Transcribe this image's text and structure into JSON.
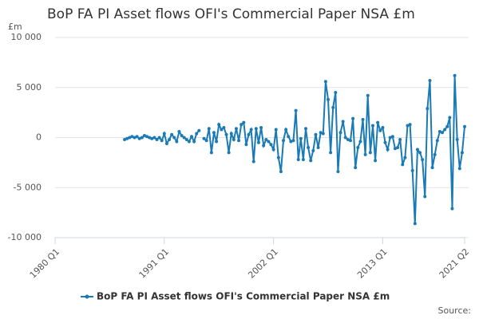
{
  "chart_data": {
    "type": "line",
    "title": "BoP FA PI Asset flows OFI's Commercial Paper NSA £m",
    "y_unit": "£m",
    "source": "Source:",
    "categories": [
      "1980 Q1",
      "1980 Q2",
      "1980 Q3",
      "1980 Q4",
      "1981 Q1",
      "1981 Q2",
      "1981 Q3",
      "1981 Q4",
      "1982 Q1",
      "1982 Q2",
      "1982 Q3",
      "1982 Q4",
      "1983 Q1",
      "1983 Q2",
      "1983 Q3",
      "1983 Q4",
      "1984 Q1",
      "1984 Q2",
      "1984 Q3",
      "1984 Q4",
      "1985 Q1",
      "1985 Q2",
      "1985 Q3",
      "1985 Q4",
      "1986 Q1",
      "1986 Q2",
      "1986 Q3",
      "1986 Q4",
      "1987 Q1",
      "1987 Q2",
      "1987 Q3",
      "1987 Q4",
      "1988 Q1",
      "1988 Q2",
      "1988 Q3",
      "1988 Q4",
      "1989 Q1",
      "1989 Q2",
      "1989 Q3",
      "1989 Q4",
      "1990 Q1",
      "1990 Q2",
      "1990 Q3",
      "1990 Q4",
      "1991 Q1",
      "1991 Q2",
      "1991 Q3",
      "1991 Q4",
      "1992 Q1",
      "1992 Q2",
      "1992 Q3",
      "1992 Q4",
      "1993 Q1",
      "1993 Q2",
      "1993 Q3",
      "1993 Q4",
      "1994 Q1",
      "1994 Q2",
      "1994 Q3",
      "1994 Q4",
      "1995 Q1",
      "1995 Q2",
      "1995 Q3",
      "1995 Q4",
      "1996 Q1",
      "1996 Q2",
      "1996 Q3",
      "1996 Q4",
      "1997 Q1",
      "1997 Q2",
      "1997 Q3",
      "1997 Q4",
      "1998 Q1",
      "1998 Q2",
      "1998 Q3",
      "1998 Q4",
      "1999 Q1",
      "1999 Q2",
      "1999 Q3",
      "1999 Q4",
      "2000 Q1",
      "2000 Q2",
      "2000 Q3",
      "2000 Q4",
      "2001 Q1",
      "2001 Q2",
      "2001 Q3",
      "2001 Q4",
      "2002 Q1",
      "2002 Q2",
      "2002 Q3",
      "2002 Q4",
      "2003 Q1",
      "2003 Q2",
      "2003 Q3",
      "2003 Q4",
      "2004 Q1",
      "2004 Q2",
      "2004 Q3",
      "2004 Q4",
      "2005 Q1",
      "2005 Q2",
      "2005 Q3",
      "2005 Q4",
      "2006 Q1",
      "2006 Q2",
      "2006 Q3",
      "2006 Q4",
      "2007 Q1",
      "2007 Q2",
      "2007 Q3",
      "2007 Q4",
      "2008 Q1",
      "2008 Q2",
      "2008 Q3",
      "2008 Q4",
      "2009 Q1",
      "2009 Q2",
      "2009 Q3",
      "2009 Q4",
      "2010 Q1",
      "2010 Q2",
      "2010 Q3",
      "2010 Q4",
      "2011 Q1",
      "2011 Q2",
      "2011 Q3",
      "2011 Q4",
      "2012 Q1",
      "2012 Q2",
      "2012 Q3",
      "2012 Q4",
      "2013 Q1",
      "2013 Q2",
      "2013 Q3",
      "2013 Q4",
      "2014 Q1",
      "2014 Q2",
      "2014 Q3",
      "2014 Q4",
      "2015 Q1",
      "2015 Q2",
      "2015 Q3",
      "2015 Q4",
      "2016 Q1",
      "2016 Q2",
      "2016 Q3",
      "2016 Q4",
      "2017 Q1",
      "2017 Q2",
      "2017 Q3",
      "2017 Q4",
      "2018 Q1",
      "2018 Q2",
      "2018 Q3",
      "2018 Q4",
      "2019 Q1",
      "2019 Q2",
      "2019 Q3",
      "2019 Q4",
      "2020 Q1",
      "2020 Q2",
      "2020 Q3",
      "2020 Q4",
      "2021 Q1",
      "2021 Q2"
    ],
    "xticks": [
      "1980 Q1",
      "1991 Q1",
      "2002 Q1",
      "2013 Q1",
      "2021 Q2"
    ],
    "series": [
      {
        "name": "BoP FA PI Asset flows OFI's Commercial Paper NSA £m",
        "color": "#1a7ab5",
        "values": [
          null,
          null,
          null,
          null,
          null,
          null,
          null,
          null,
          null,
          null,
          null,
          null,
          null,
          null,
          null,
          null,
          null,
          null,
          null,
          null,
          null,
          null,
          null,
          null,
          null,
          null,
          null,
          null,
          -200,
          -100,
          0,
          100,
          0,
          100,
          -100,
          0,
          200,
          100,
          0,
          -100,
          0,
          -200,
          0,
          -300,
          400,
          -600,
          -200,
          300,
          0,
          -400,
          600,
          200,
          0,
          -200,
          -400,
          100,
          -400,
          400,
          700,
          null,
          -100,
          -300,
          900,
          -1500,
          500,
          -400,
          1300,
          800,
          1000,
          300,
          -1500,
          400,
          -200,
          900,
          -300,
          1300,
          1500,
          -700,
          300,
          800,
          -2400,
          900,
          -500,
          1000,
          -800,
          -200,
          -400,
          -700,
          -1200,
          800,
          -2000,
          -3400,
          -300,
          800,
          100,
          -400,
          -300,
          2700,
          -2200,
          -100,
          -2200,
          900,
          -1000,
          -2300,
          -1300,
          300,
          -1000,
          500,
          400,
          5600,
          3800,
          -1500,
          3000,
          4500,
          -3400,
          500,
          1600,
          0,
          -200,
          -300,
          1900,
          -3000,
          -1000,
          -400,
          1800,
          -1700,
          4200,
          -1500,
          1200,
          -2300,
          1500,
          700,
          1000,
          -500,
          -1200,
          0,
          100,
          -1100,
          -1000,
          -200,
          -2700,
          -2000,
          1200,
          1300,
          -3300,
          -8600,
          -1200,
          -1500,
          -2200,
          -5900,
          2900,
          5700,
          -3000,
          -1700,
          -300,
          600,
          500,
          800,
          1100,
          2000,
          -7100,
          6200,
          -200,
          -3100,
          -1500,
          1100
        ]
      }
    ],
    "ylim": [
      -10000,
      10000
    ],
    "yticks": [
      {
        "value": -10000,
        "label": "-10 000"
      },
      {
        "value": -5000,
        "label": "-5 000"
      },
      0,
      {
        "value": 5000,
        "label": "5 000"
      },
      {
        "value": 10000,
        "label": "10 000"
      }
    ],
    "grid": true
  }
}
